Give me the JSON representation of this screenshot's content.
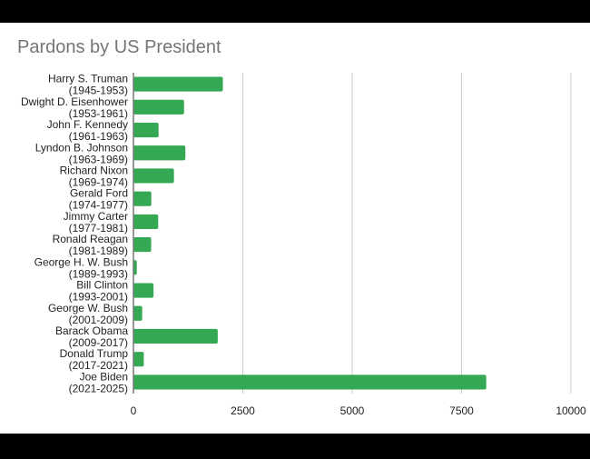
{
  "chart_data": {
    "type": "bar",
    "orientation": "horizontal",
    "title": "Pardons by US President",
    "xlabel": "",
    "ylabel": "",
    "xlim": [
      0,
      10000
    ],
    "xticks": [
      "0",
      "2500",
      "5000",
      "7500",
      "10000"
    ],
    "grid": true,
    "legend": "none",
    "bar_color": "#34a853",
    "categories": [
      {
        "name": "Harry S. Truman",
        "years": "(1945-1953)"
      },
      {
        "name": "Dwight D. Eisenhower",
        "years": "(1953-1961)"
      },
      {
        "name": "John F. Kennedy",
        "years": "(1961-1963)"
      },
      {
        "name": "Lyndon B. Johnson",
        "years": "(1963-1969)"
      },
      {
        "name": "Richard Nixon",
        "years": "(1969-1974)"
      },
      {
        "name": "Gerald Ford",
        "years": "(1974-1977)"
      },
      {
        "name": "Jimmy Carter",
        "years": "(1977-1981)"
      },
      {
        "name": "Ronald Reagan",
        "years": "(1981-1989)"
      },
      {
        "name": "George H. W. Bush",
        "years": "(1989-1993)"
      },
      {
        "name": "Bill Clinton",
        "years": "(1993-2001)"
      },
      {
        "name": "George W. Bush",
        "years": "(2001-2009)"
      },
      {
        "name": "Barack Obama",
        "years": "(2009-2017)"
      },
      {
        "name": "Donald Trump",
        "years": "(2017-2021)"
      },
      {
        "name": "Joe Biden",
        "years": "(2021-2025)"
      }
    ],
    "values": [
      2044,
      1157,
      575,
      1187,
      926,
      409,
      566,
      406,
      77,
      459,
      200,
      1927,
      237,
      8064
    ]
  }
}
